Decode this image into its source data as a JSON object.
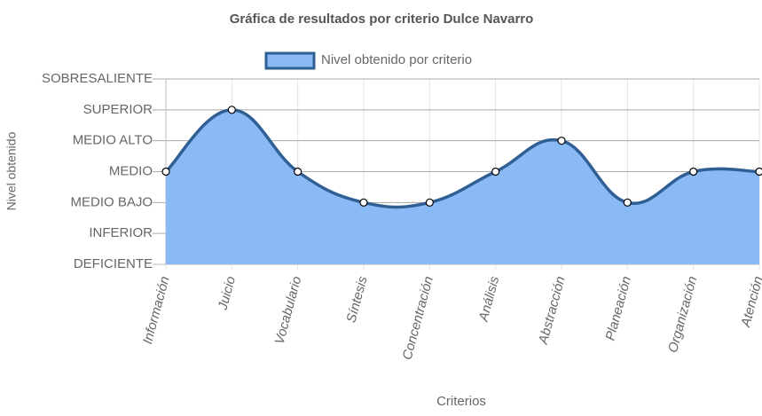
{
  "chart_data": {
    "type": "line",
    "title": "Gráfica de resultados por criterio Dulce Navarro",
    "x_label": "Criterios",
    "y_label": "Nivel obtenido",
    "categories": [
      "Información",
      "Juicio",
      "Vocabulario",
      "Síntesis",
      "Concentración",
      "Análisis",
      "Abstracción",
      "Planeación",
      "Organización",
      "Atención"
    ],
    "series": [
      {
        "name": "Nivel obtenido por criterio",
        "color": "#2f5f93",
        "fill": "#8abaf6",
        "values": [
          3,
          5,
          3,
          2,
          2,
          3,
          4,
          2,
          3,
          3
        ]
      }
    ],
    "ylim": [
      0,
      6
    ],
    "yticks": [
      {
        "value": 0,
        "label": "DEFICIENTE"
      },
      {
        "value": 1,
        "label": "INFERIOR"
      },
      {
        "value": 2,
        "label": "MEDIO BAJO"
      },
      {
        "value": 3,
        "label": "MEDIO"
      },
      {
        "value": 4,
        "label": "MEDIO ALTO"
      },
      {
        "value": 5,
        "label": "SUPERIOR"
      },
      {
        "value": 6,
        "label": "SOBRESALIENTE"
      }
    ],
    "grid": true,
    "legend": "top"
  }
}
